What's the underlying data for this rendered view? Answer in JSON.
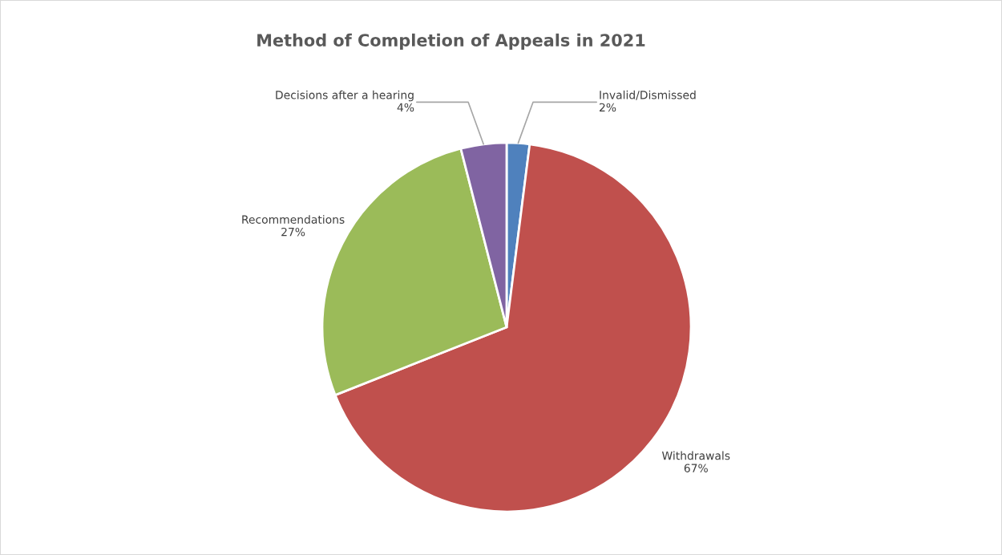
{
  "chart_data": {
    "type": "pie",
    "title": "Method of Completion of Appeals in 2021",
    "categories": [
      "Invalid/Dismissed",
      "Withdrawals",
      "Recommendations",
      "Decisions after a hearing"
    ],
    "values": [
      2,
      67,
      27,
      4
    ],
    "colors": [
      "#4f81bd",
      "#c0504d",
      "#9bbb59",
      "#8064a2"
    ],
    "value_labels": [
      "2%",
      "67%",
      "27%",
      "4%"
    ],
    "legend": false
  }
}
